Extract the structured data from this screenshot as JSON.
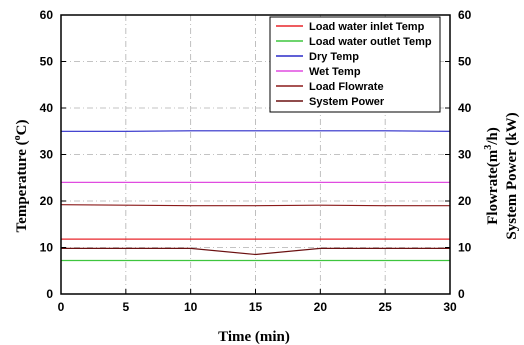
{
  "chart_data": {
    "type": "line",
    "x_label": "Time (min)",
    "y_left_label": "Temperature (",
    "y_left_label_sup": "o",
    "y_left_label_end": "C)",
    "y_right_label_line1": "Flowrate(m",
    "y_right_label_sup": "3",
    "y_right_label_line1_end": "/h)",
    "y_right_label_line2": "System Power (kW)",
    "xlim": [
      0,
      30
    ],
    "ylim": [
      0,
      60
    ],
    "y2lim": [
      0,
      60
    ],
    "x_ticks": [
      "0",
      "5",
      "10",
      "15",
      "20",
      "25",
      "30"
    ],
    "y_ticks": [
      "0",
      "10",
      "20",
      "30",
      "40",
      "50",
      "60"
    ],
    "y2_ticks": [
      "0",
      "10",
      "20",
      "30",
      "40",
      "50",
      "60"
    ],
    "grid": true,
    "legend_position": "top-right",
    "series": [
      {
        "name": "Load  water inlet Temp",
        "color": "#e8262b",
        "x": [
          0,
          5,
          10,
          15,
          20,
          25,
          30
        ],
        "y": [
          11.8,
          11.8,
          11.8,
          11.8,
          11.8,
          11.8,
          11.8
        ]
      },
      {
        "name": "Load  water outlet Temp",
        "color": "#3ec53e",
        "x": [
          0,
          5,
          10,
          15,
          20,
          25,
          30
        ],
        "y": [
          7.2,
          7.2,
          7.2,
          7.2,
          7.2,
          7.2,
          7.2
        ]
      },
      {
        "name": "Dry Temp",
        "color": "#2b2bc9",
        "x": [
          0,
          5,
          10,
          15,
          20,
          25,
          30
        ],
        "y": [
          35.0,
          35.0,
          35.1,
          35.1,
          35.1,
          35.1,
          35.0
        ]
      },
      {
        "name": "Wet Temp",
        "color": "#e04ce0",
        "x": [
          0,
          5,
          10,
          15,
          20,
          25,
          30
        ],
        "y": [
          24.0,
          24.0,
          24.0,
          24.0,
          24.0,
          24.0,
          24.0
        ]
      },
      {
        "name": "Load Flowrate",
        "color": "#8b1a1a",
        "x": [
          0,
          5,
          10,
          15,
          20,
          25,
          30
        ],
        "y": [
          19.2,
          19.1,
          19.0,
          19.0,
          19.1,
          19.0,
          19.0
        ]
      },
      {
        "name": "System Power",
        "color": "#6b1010",
        "x": [
          0,
          5,
          10,
          15,
          20,
          25,
          30
        ],
        "y": [
          9.8,
          9.8,
          9.8,
          8.5,
          9.8,
          9.8,
          9.8
        ]
      }
    ]
  }
}
